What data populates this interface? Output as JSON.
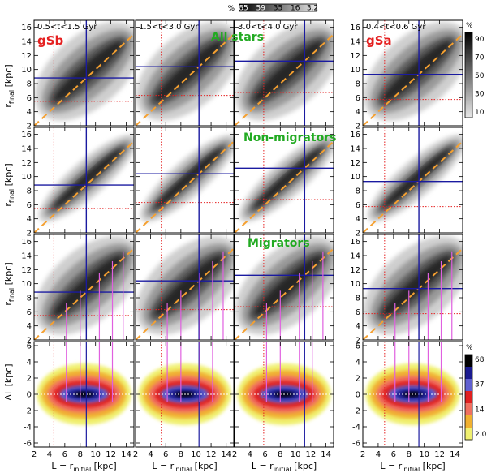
{
  "chart_data": {
    "type": "heatmap",
    "x_label": "L = r",
    "x_label_sub": "initial",
    "x_label_unit": "[kpc]",
    "y_label": "r",
    "y_label_sub": "final",
    "y_label_unit": "[kpc]",
    "dl_label": "ΔL",
    "dl_label_unit": "[kpc]",
    "xlim": [
      2,
      15
    ],
    "ylim": [
      2,
      17
    ],
    "dl_ylim": [
      -6.5,
      6.5
    ],
    "x_ticks": [
      "2",
      "4",
      "6",
      "8",
      "10",
      "12",
      "14"
    ],
    "y_ticks": [
      "2",
      "4",
      "6",
      "8",
      "10",
      "12",
      "14",
      "16"
    ],
    "dl_ticks": [
      "-6",
      "-4",
      "-2",
      "0",
      "2",
      "4",
      "6"
    ],
    "columns": [
      {
        "label": "0.5<t<1.5 Gyr",
        "galaxy": "gSb",
        "disc_scale": 8.8
      },
      {
        "label": "1.5<t<3.0 Gyr",
        "galaxy": "",
        "disc_scale": 10.4
      },
      {
        "label": "3.0<t<4.0 Gyr",
        "galaxy": "",
        "disc_scale": 11.2
      },
      {
        "label": "0.4<t<0.6 Gyr",
        "galaxy": "gSa",
        "disc_scale": 9.3
      }
    ],
    "rows": [
      {
        "category": "All stars"
      },
      {
        "category": "Non-migrators"
      },
      {
        "category": "Migrators"
      },
      {
        "category": ""
      }
    ],
    "top_colorbar": {
      "unit": "%",
      "ticks": [
        "85",
        "59",
        "35",
        "16",
        "3.2"
      ]
    },
    "right_colorbar": {
      "unit": "%",
      "ticks": [
        "90",
        "70",
        "50",
        "30",
        "10"
      ]
    },
    "dl_colorbar": {
      "unit": "%",
      "ticks": [
        "68",
        "37",
        "14",
        "2.0"
      ]
    },
    "colors": {
      "corotation_lines": "#1a1aa0",
      "resonance_lines": "#e52020",
      "one_to_one": "#f5a030",
      "pink_lines": "#e060e0",
      "galaxy_label": "#e52020",
      "category_label": "#22aa22",
      "dl_levels": [
        "#f0f070",
        "#f0b030",
        "#f07060",
        "#e02020",
        "#6060d0",
        "#1a1a90",
        "#000000"
      ]
    }
  }
}
